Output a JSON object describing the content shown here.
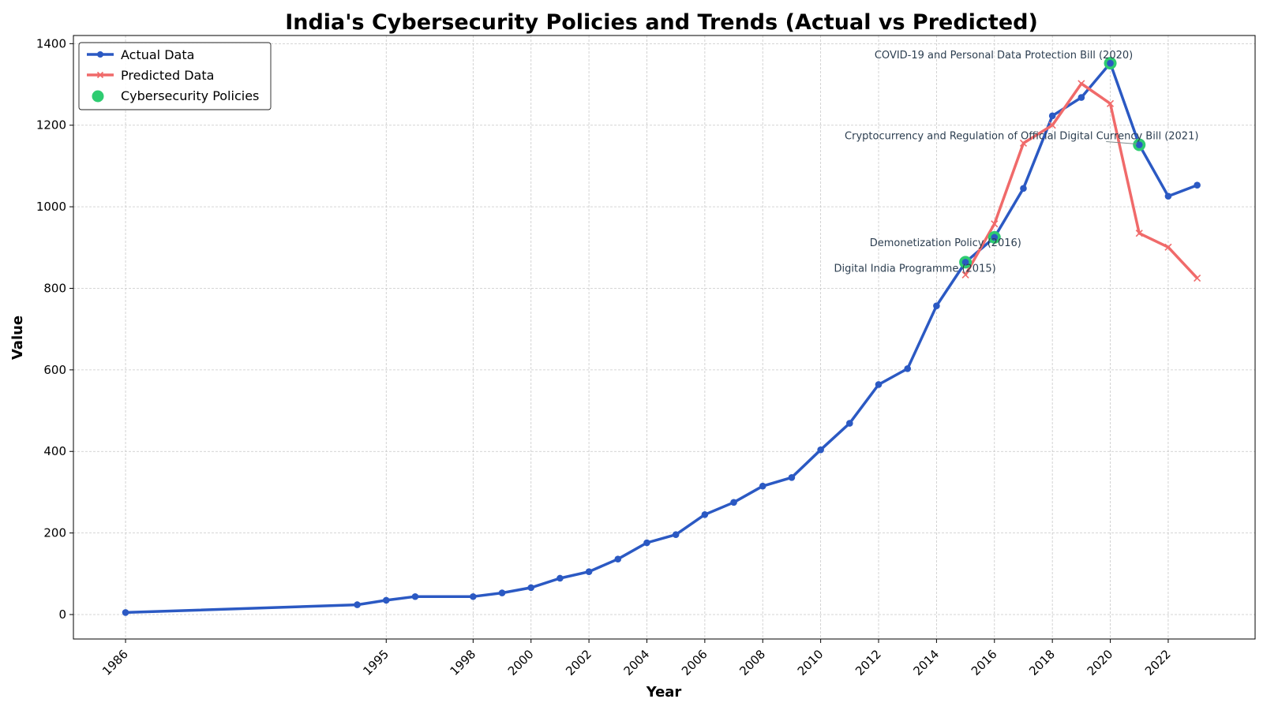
{
  "chart_data": {
    "type": "line",
    "title": "India's Cybersecurity Policies and Trends (Actual vs Predicted)",
    "xlabel": "Year",
    "ylabel": "Value",
    "xlim": [
      1984.2,
      2025.0
    ],
    "ylim": [
      -60,
      1420
    ],
    "grid": true,
    "legend_position": "top-left",
    "x_ticks": [
      1986,
      1995,
      1998,
      2000,
      2002,
      2004,
      2006,
      2008,
      2010,
      2012,
      2014,
      2016,
      2018,
      2020,
      2022
    ],
    "y_ticks": [
      0,
      200,
      400,
      600,
      800,
      1000,
      1200,
      1400
    ],
    "series": [
      {
        "name": "Actual Data",
        "color": "#2b59c3",
        "marker": "circle",
        "x": [
          1986,
          1994,
          1995,
          1996,
          1998,
          1999,
          2000,
          2001,
          2002,
          2003,
          2004,
          2005,
          2006,
          2007,
          2008,
          2009,
          2010,
          2011,
          2012,
          2013,
          2014,
          2015,
          2016,
          2017,
          2018,
          2019,
          2020,
          2021,
          2022,
          2023
        ],
        "y": [
          5,
          24,
          35,
          44,
          44,
          53,
          66,
          89,
          105,
          136,
          176,
          196,
          245,
          275,
          315,
          336,
          404,
          469,
          564,
          603,
          757,
          864,
          925,
          1045,
          1223,
          1268,
          1352,
          1152,
          1026,
          1053
        ]
      },
      {
        "name": "Predicted Data",
        "color": "#f06a6a",
        "marker": "x",
        "x": [
          2015,
          2016,
          2017,
          2018,
          2019,
          2020,
          2021,
          2022,
          2023
        ],
        "y": [
          833,
          958,
          1156,
          1200,
          1302,
          1253,
          935,
          901,
          825
        ]
      }
    ],
    "policy_markers": {
      "name": "Cybersecurity Policies",
      "color": "#2ecc71",
      "points": [
        {
          "x": 2015,
          "y": 864,
          "label": "Digital India Programme (2015)"
        },
        {
          "x": 2016,
          "y": 925,
          "label": "Demonetization Policy (2016)"
        },
        {
          "x": 2020,
          "y": 1352,
          "label": "COVID-19 and Personal Data Protection Bill (2020)"
        },
        {
          "x": 2021,
          "y": 1152,
          "label": "Cryptocurrency and Regulation of Official Digital Currency Bill (2021)"
        }
      ]
    }
  }
}
